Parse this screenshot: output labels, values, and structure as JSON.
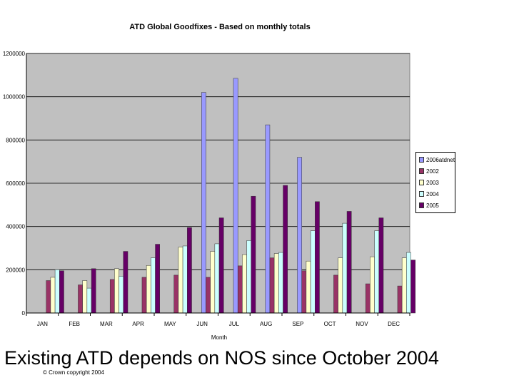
{
  "chart_data": {
    "type": "bar",
    "title": "ATD Global Goodfixes - Based on monthly totals",
    "xlabel": "Month",
    "ylabel": "",
    "ylim": [
      0,
      1200000
    ],
    "yticks": [
      0,
      200000,
      400000,
      600000,
      800000,
      1000000,
      1200000
    ],
    "ytick_labels": [
      "0",
      "200000",
      "400000",
      "600000",
      "800000",
      "1000000",
      "1200000"
    ],
    "categories": [
      "JAN",
      "FEB",
      "MAR",
      "APR",
      "MAY",
      "JUN",
      "JUL",
      "AUG",
      "SEP",
      "OCT",
      "NOV",
      "DEC"
    ],
    "grid": true,
    "legend_position": "right",
    "series": [
      {
        "name": "2006atdnet",
        "color": "#9999FF",
        "values": [
          0,
          0,
          0,
          0,
          0,
          1020000,
          1085000,
          870000,
          720000,
          0,
          0,
          0
        ]
      },
      {
        "name": "2002",
        "color": "#993366",
        "values": [
          150000,
          130000,
          155000,
          165000,
          175000,
          165000,
          218000,
          255000,
          195000,
          175000,
          135000,
          125000
        ]
      },
      {
        "name": "2003",
        "color": "#FFFFCC",
        "values": [
          165000,
          150000,
          205000,
          220000,
          305000,
          285000,
          270000,
          275000,
          240000,
          255000,
          260000,
          255000
        ]
      },
      {
        "name": "2004",
        "color": "#CCFFFF",
        "values": [
          200000,
          115000,
          170000,
          255000,
          310000,
          320000,
          335000,
          280000,
          380000,
          415000,
          380000,
          280000
        ]
      },
      {
        "name": "2005",
        "color": "#660066",
        "values": [
          195000,
          205000,
          285000,
          318000,
          395000,
          440000,
          540000,
          590000,
          515000,
          470000,
          440000,
          245000
        ]
      }
    ]
  },
  "caption": "Existing  ATD depends on NOS since October 2004",
  "copyright": "© Crown copyright 2004"
}
